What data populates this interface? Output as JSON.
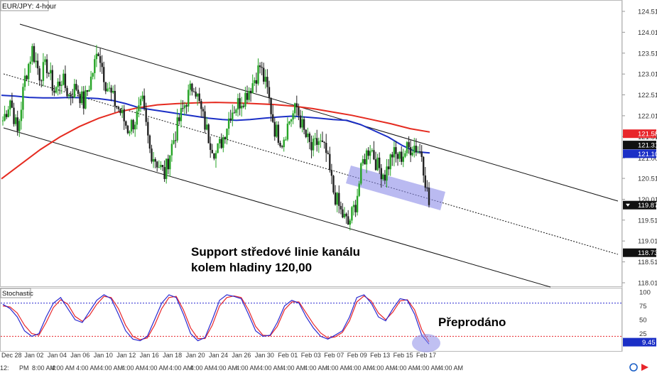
{
  "chart_data": {
    "type": "candlestick",
    "title": "EUR/JPY: 4-hour",
    "price_axis": {
      "range": [
        117.85,
        124.75
      ],
      "tick_labels": [
        "124.51",
        "124.01",
        "123.51",
        "123.01",
        "122.51",
        "122.01",
        "121.51",
        "121.00",
        "120.51",
        "120.01",
        "119.51",
        "119.01",
        "118.51",
        "118.01"
      ],
      "badges": [
        {
          "label": "121.58",
          "value": 121.58,
          "fill": "#e8262b",
          "text_color": "#ffffff"
        },
        {
          "label": "121.31",
          "value": 121.31,
          "fill": "#111111",
          "text_color": "#ffffff"
        },
        {
          "label": "121.10",
          "value": 121.1,
          "fill": "#1b2fc6",
          "text_color": "#ffffff"
        },
        {
          "label": "119.87",
          "value": 119.87,
          "fill": "#111111",
          "text_color": "#ffffff"
        },
        {
          "label": "118.73",
          "value": 118.73,
          "fill": "#111111",
          "text_color": "#ffffff"
        }
      ]
    },
    "x_axis": {
      "date_labels": [
        "Dec 28",
        "Jan 02",
        "Jan 04",
        "Jan 06",
        "Jan 10",
        "Jan 12",
        "Jan 16",
        "Jan 18",
        "Jan 20",
        "Jan 24",
        "Jan 26",
        "Jan 30",
        "Feb 01",
        "Feb 03",
        "Feb 07",
        "Feb 09",
        "Feb 13",
        "Feb 15",
        "Feb 17"
      ],
      "time_labels": [
        "12:",
        "PM",
        "8:00 AM",
        "4:00 AM",
        "4:00 AM",
        "4:00 AM",
        "4:00 AM",
        "4:00 AM",
        "4:00 AM",
        "4:00 AM",
        "4:00 AM",
        "4:00 AM",
        "4:00 AM",
        "4:00 AM",
        "4:00 AM",
        "4:00 AM",
        "4:00 AM",
        "4:00 AM",
        "4:00 AM",
        "4:00 AM",
        "4:00 AM"
      ]
    },
    "price_series": [
      121.9,
      122.4,
      121.6,
      122.9,
      123.6,
      123.0,
      123.2,
      122.6,
      122.9,
      122.5,
      122.7,
      122.3,
      122.9,
      123.6,
      122.8,
      122.4,
      122.1,
      121.7,
      121.9,
      122.3,
      121.2,
      120.9,
      120.6,
      121.3,
      121.9,
      122.4,
      122.8,
      122.1,
      121.5,
      121.1,
      121.5,
      122.1,
      122.3,
      122.5,
      122.8,
      123.2,
      122.6,
      121.7,
      121.4,
      121.9,
      122.2,
      121.6,
      121.2,
      121.4,
      121.1,
      120.2,
      119.7,
      119.4,
      119.9,
      120.9,
      121.3,
      120.8,
      120.6,
      121.1,
      121.0,
      121.2,
      121.3,
      121.1,
      119.87
    ],
    "series": [
      {
        "name": "",
        "color": "#1b2fc6",
        "values": [
          122.5,
          122.48,
          122.45,
          122.44,
          122.44,
          122.45,
          122.44,
          122.42,
          122.38,
          122.3,
          122.2,
          122.15,
          122.1,
          122.05,
          122.0,
          121.95,
          121.92,
          121.9,
          121.92,
          121.95,
          121.98,
          122.0,
          121.98,
          121.95,
          121.92,
          121.9,
          121.8,
          121.65,
          121.5,
          121.3,
          121.15,
          121.12
        ]
      },
      {
        "name": "",
        "color": "#e52b20",
        "values": [
          120.5,
          120.85,
          121.2,
          121.5,
          121.75,
          121.95,
          122.1,
          122.2,
          122.27,
          122.3,
          122.32,
          122.33,
          122.32,
          122.3,
          122.28,
          122.24,
          122.18,
          122.1,
          122.02,
          121.92,
          121.82,
          121.7,
          121.62
        ]
      }
    ],
    "stochastic": {
      "label": "Stochastic",
      "range": [
        0,
        100
      ],
      "tick_labels": [
        "100",
        "75",
        "50",
        "25"
      ],
      "levels": [
        80,
        20
      ],
      "k": [
        78,
        70,
        55,
        30,
        20,
        25,
        55,
        80,
        90,
        70,
        50,
        45,
        65,
        85,
        95,
        88,
        60,
        30,
        15,
        12,
        20,
        50,
        80,
        95,
        90,
        60,
        25,
        12,
        18,
        50,
        85,
        95,
        92,
        88,
        60,
        30,
        20,
        22,
        45,
        75,
        85,
        80,
        55,
        35,
        20,
        15,
        22,
        30,
        55,
        90,
        95,
        80,
        55,
        48,
        70,
        88,
        85,
        60,
        22,
        6
      ],
      "d": [
        75,
        73,
        62,
        40,
        25,
        22,
        45,
        72,
        86,
        78,
        56,
        47,
        58,
        78,
        92,
        90,
        70,
        40,
        20,
        14,
        17,
        40,
        70,
        90,
        92,
        68,
        35,
        16,
        16,
        40,
        75,
        90,
        93,
        90,
        68,
        38,
        22,
        21,
        38,
        68,
        82,
        82,
        62,
        42,
        26,
        17,
        19,
        27,
        48,
        82,
        93,
        84,
        62,
        50,
        64,
        84,
        86,
        68,
        32,
        10
      ],
      "badge": {
        "label": "9.45",
        "value": 9.45,
        "fill": "#1b2fc6",
        "text_color": "#ffffff"
      }
    },
    "annotations": {
      "support_line1": "Support středové linie kanálu",
      "support_line2": "kolem hladiny 120,00",
      "oversold": "Přeprodáno"
    },
    "colors": {
      "bull": "#26a426",
      "bear": "#222222",
      "channel": "#111111",
      "highlight": "#8c8ce8"
    }
  }
}
